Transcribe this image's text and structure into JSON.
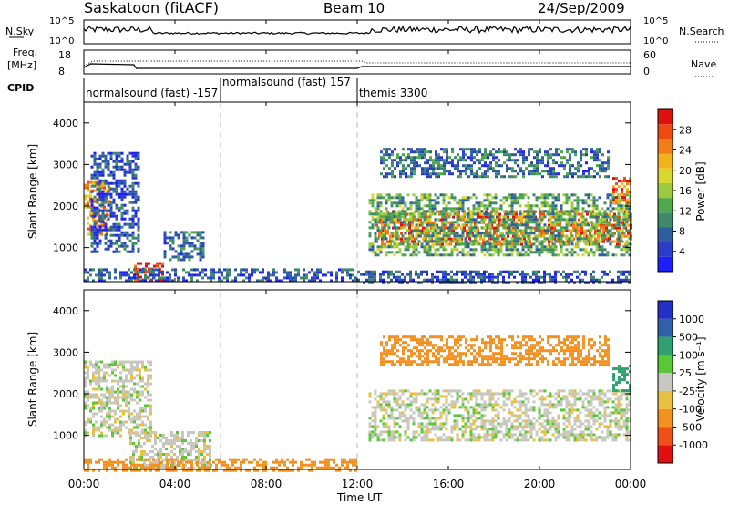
{
  "header": {
    "title_left": "Saskatoon (fitACF)",
    "title_center": "Beam 10",
    "title_right": "24/Sep/2009"
  },
  "noise_panel": {
    "left_label": "N.Sky",
    "right_label": "N.Search",
    "right_legend_line": "……..",
    "ticks_left": [
      "10^5",
      "10^0"
    ],
    "ticks_right": [
      "10^5",
      "10^0"
    ],
    "ylim": [
      0,
      5
    ]
  },
  "freq_panel": {
    "left_label_line1": "Freq.",
    "left_label_line2": "[MHz]",
    "right_label": "Nave",
    "right_legend_line": "……",
    "ticks_left": [
      "18",
      "8"
    ],
    "ticks_right": [
      "60",
      "0"
    ],
    "ylim_left": [
      8,
      18
    ],
    "ylim_right": [
      0,
      60
    ]
  },
  "cpid_panel": {
    "label": "CPID",
    "segments": [
      {
        "start_hour": 0,
        "text": "normalsound (fast) -157"
      },
      {
        "start_hour": 6,
        "text": "normalsound (fast) 157"
      },
      {
        "start_hour": 12,
        "text": "themis 3300"
      }
    ]
  },
  "x_axis": {
    "label": "Time UT",
    "ticks": [
      "00:00",
      "04:00",
      "08:00",
      "12:00",
      "16:00",
      "20:00",
      "00:00"
    ],
    "tick_hours": [
      0,
      4,
      8,
      12,
      16,
      20,
      24
    ],
    "xlim": [
      0,
      24
    ]
  },
  "power_panel": {
    "ylabel": "Slant Range [km]",
    "yticks": [
      "1000",
      "2000",
      "3000",
      "4000"
    ],
    "ylim": [
      180,
      4500
    ],
    "colorbar_label": "Power [dB]",
    "colorbar_ticks": [
      "4",
      "8",
      "12",
      "16",
      "20",
      "24",
      "28"
    ],
    "colorbar_colors": [
      "#1d1dff",
      "#2a3cc8",
      "#2d5ea0",
      "#3e8a6a",
      "#4ea84e",
      "#9ccc3c",
      "#d8d830",
      "#f2b21c",
      "#f27c18",
      "#ef4a14",
      "#e01010"
    ]
  },
  "velocity_panel": {
    "ylabel": "Slant Range [km]",
    "yticks": [
      "1000",
      "2000",
      "3000",
      "4000"
    ],
    "ylim": [
      180,
      4500
    ],
    "colorbar_label": "Velocity [m s⁻¹]",
    "colorbar_ticks": [
      "1000",
      "500",
      "100",
      "25",
      "-25",
      "-100",
      "-500",
      "-1000"
    ],
    "colorbar_colors": [
      "#2030c8",
      "#3060a8",
      "#30a070",
      "#58c838",
      "#c8c8c0",
      "#e8c040",
      "#f29020",
      "#ef5018",
      "#e01010"
    ]
  },
  "chart_data": {
    "type": "heatmap",
    "x_unit": "hours UT",
    "power_regions": [
      {
        "t0": 0.0,
        "t1": 1.2,
        "r0": 1300,
        "r1": 2600,
        "power": 22
      },
      {
        "t0": 0.3,
        "t1": 2.4,
        "r0": 900,
        "r1": 3300,
        "power": 6
      },
      {
        "t0": 2.2,
        "t1": 3.5,
        "r0": 200,
        "r1": 650,
        "power": 28
      },
      {
        "t0": 3.5,
        "t1": 5.2,
        "r0": 700,
        "r1": 1400,
        "power": 8
      },
      {
        "t0": 0.0,
        "t1": 12.0,
        "r0": 180,
        "r1": 500,
        "power": 6
      },
      {
        "t0": 12.8,
        "t1": 24.0,
        "r0": 1100,
        "r1": 1900,
        "power": 24
      },
      {
        "t0": 12.5,
        "t1": 24.0,
        "r0": 800,
        "r1": 2300,
        "power": 12
      },
      {
        "t0": 13.0,
        "t1": 23.0,
        "r0": 2700,
        "r1": 3400,
        "power": 8
      },
      {
        "t0": 23.2,
        "t1": 24.0,
        "r0": 2100,
        "r1": 2700,
        "power": 24
      },
      {
        "t0": 12.0,
        "t1": 24.0,
        "r0": 180,
        "r1": 450,
        "power": 6
      }
    ],
    "velocity_regions": [
      {
        "t0": 0.0,
        "t1": 3.0,
        "r0": 1000,
        "r1": 2800,
        "velocity": 0
      },
      {
        "t0": 2.0,
        "t1": 5.5,
        "r0": 180,
        "r1": 1100,
        "velocity": 0
      },
      {
        "t0": 0.0,
        "t1": 12.0,
        "r0": 180,
        "r1": 450,
        "velocity": -150
      },
      {
        "t0": 12.5,
        "t1": 24.0,
        "r0": 900,
        "r1": 2100,
        "velocity": 0
      },
      {
        "t0": 13.0,
        "t1": 23.0,
        "r0": 2700,
        "r1": 3400,
        "velocity": -100
      },
      {
        "t0": 23.2,
        "t1": 24.0,
        "r0": 2100,
        "r1": 2700,
        "velocity": 150
      }
    ]
  }
}
